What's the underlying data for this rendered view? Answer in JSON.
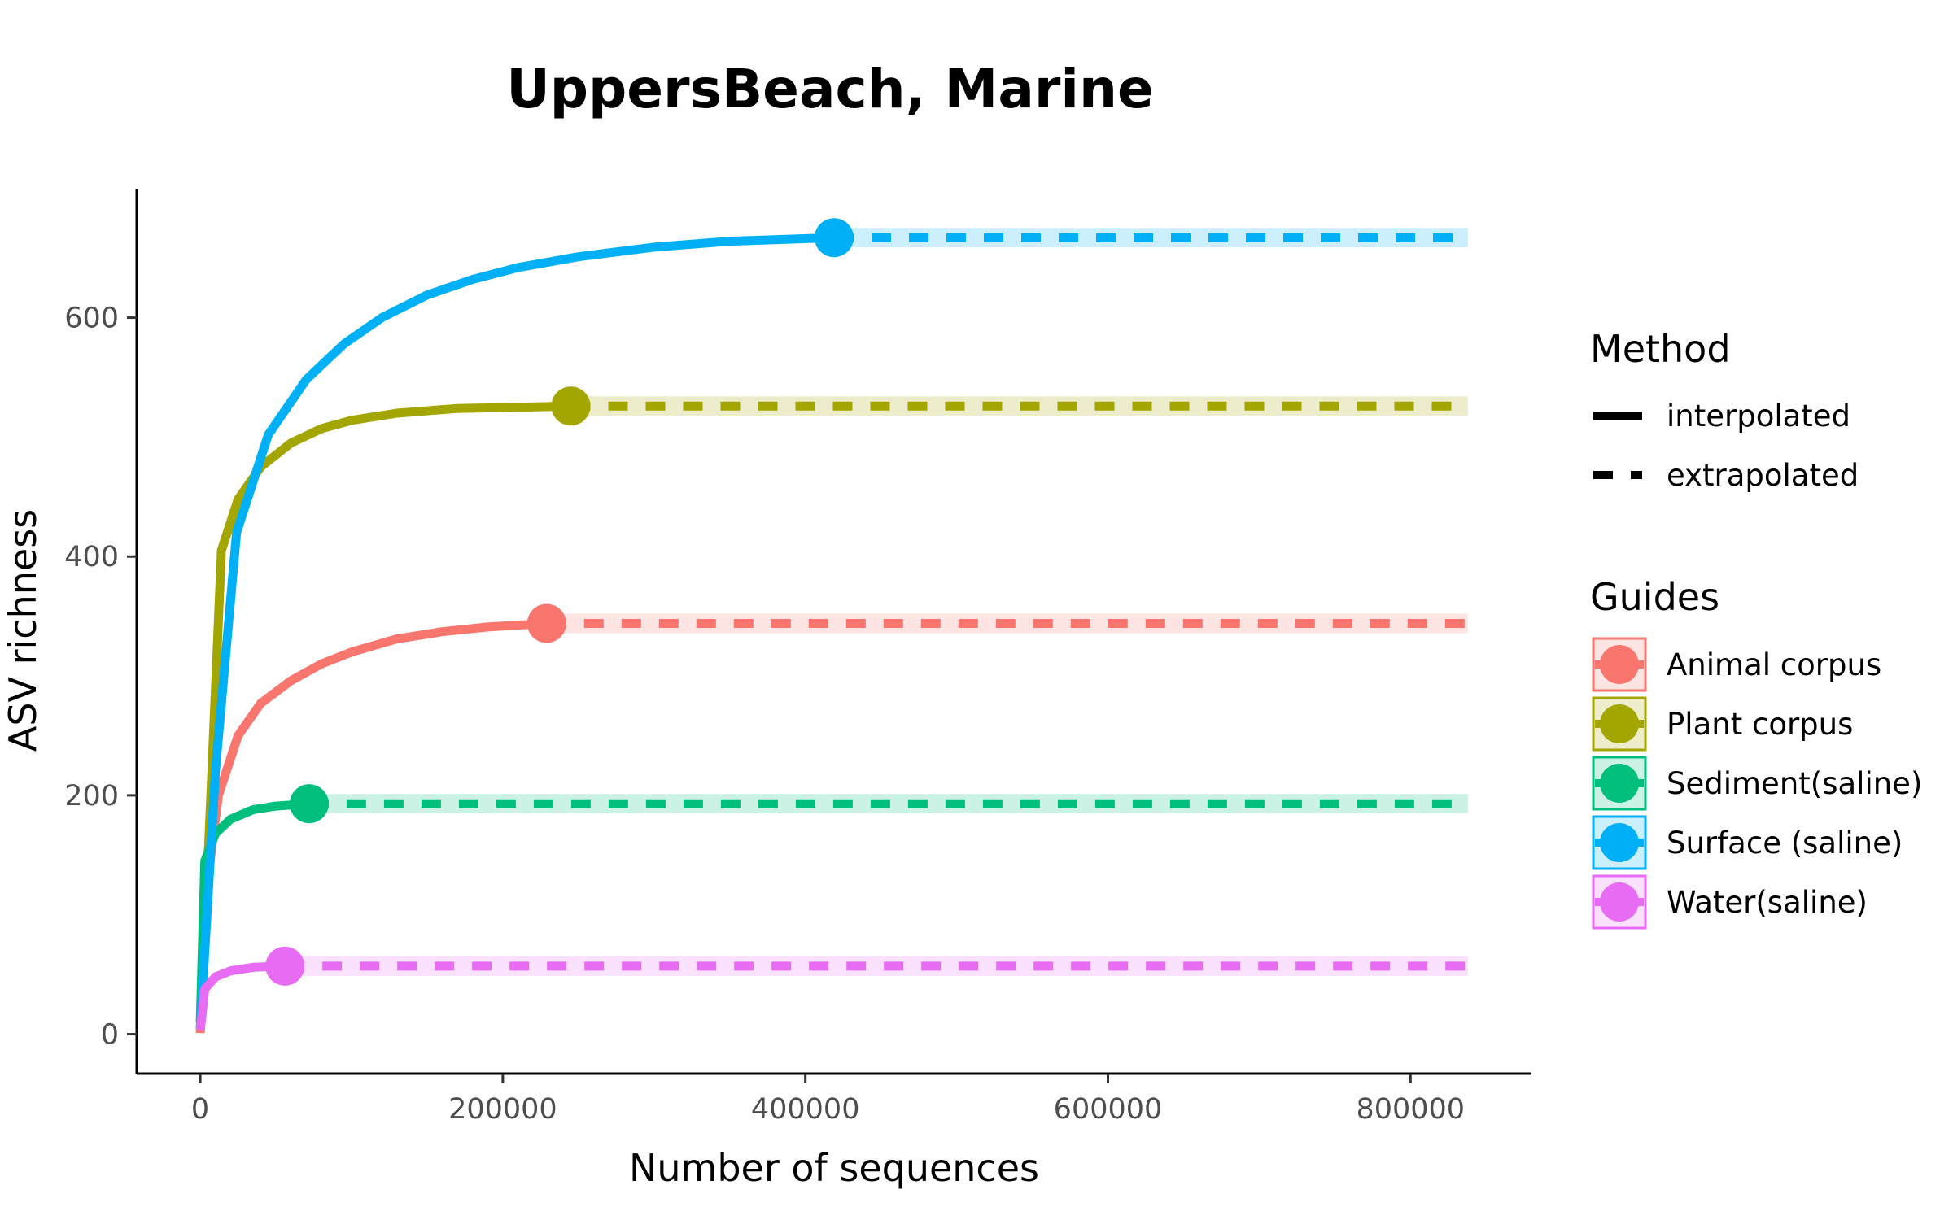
{
  "chart_data": {
    "type": "line",
    "title": "UppersBeach, Marine",
    "xlabel": "Number of sequences",
    "ylabel": "ASV richness",
    "xlim": [
      -42000,
      880000
    ],
    "ylim": [
      -33,
      708
    ],
    "xticks": [
      0,
      200000,
      400000,
      600000,
      800000
    ],
    "xtick_labels": [
      "0",
      "200000",
      "400000",
      "600000",
      "800000"
    ],
    "yticks": [
      0,
      200,
      400,
      600
    ],
    "ytick_labels": [
      "0",
      "200",
      "400",
      "600"
    ],
    "grid": false,
    "legend_position": "right",
    "method_legend": {
      "title": "Method",
      "items": [
        {
          "label": "interpolated",
          "style": "solid"
        },
        {
          "label": "extrapolated",
          "style": "dashed"
        }
      ]
    },
    "series_legend_title": "Guides",
    "x_max": 838000,
    "series": [
      {
        "name": "Animal corpus",
        "color": "#F8766D",
        "observed": [
          229000,
          344
        ],
        "interpolated": [
          [
            0,
            1
          ],
          [
            5000,
            130
          ],
          [
            12000,
            200
          ],
          [
            25000,
            250
          ],
          [
            40000,
            277
          ],
          [
            60000,
            296
          ],
          [
            80000,
            310
          ],
          [
            100000,
            320
          ],
          [
            130000,
            331
          ],
          [
            160000,
            337
          ],
          [
            190000,
            341
          ],
          [
            229000,
            344
          ]
        ],
        "extrapolated": [
          [
            229000,
            344
          ],
          [
            838000,
            344
          ]
        ]
      },
      {
        "name": "Plant corpus",
        "color": "#A3A500",
        "observed": [
          245000,
          526
        ],
        "interpolated": [
          [
            0,
            3
          ],
          [
            7000,
            200
          ],
          [
            14000,
            405
          ],
          [
            25000,
            448
          ],
          [
            40000,
            475
          ],
          [
            60000,
            495
          ],
          [
            80000,
            507
          ],
          [
            100000,
            514
          ],
          [
            130000,
            520
          ],
          [
            170000,
            524
          ],
          [
            210000,
            525
          ],
          [
            245000,
            526
          ]
        ],
        "extrapolated": [
          [
            245000,
            526
          ],
          [
            838000,
            526
          ]
        ]
      },
      {
        "name": "Sediment(saline)",
        "color": "#00BF7D",
        "observed": [
          72000,
          193
        ],
        "interpolated": [
          [
            0,
            10
          ],
          [
            3000,
            145
          ],
          [
            10000,
            168
          ],
          [
            20000,
            180
          ],
          [
            35000,
            188
          ],
          [
            50000,
            191
          ],
          [
            72000,
            193
          ]
        ],
        "extrapolated": [
          [
            72000,
            193
          ],
          [
            838000,
            193
          ]
        ]
      },
      {
        "name": "Surface (saline)",
        "color": "#00B0F6",
        "observed": [
          419000,
          667
        ],
        "interpolated": [
          [
            0,
            5
          ],
          [
            10000,
            220
          ],
          [
            24000,
            420
          ],
          [
            45000,
            502
          ],
          [
            70000,
            548
          ],
          [
            95000,
            578
          ],
          [
            120000,
            600
          ],
          [
            150000,
            619
          ],
          [
            180000,
            632
          ],
          [
            210000,
            642
          ],
          [
            250000,
            651
          ],
          [
            300000,
            659
          ],
          [
            350000,
            664
          ],
          [
            419000,
            667
          ]
        ],
        "extrapolated": [
          [
            419000,
            667
          ],
          [
            838000,
            667
          ]
        ]
      },
      {
        "name": "Water(saline)",
        "color": "#E76BF3",
        "observed": [
          56000,
          57
        ],
        "interpolated": [
          [
            0,
            3
          ],
          [
            3000,
            38
          ],
          [
            10000,
            48
          ],
          [
            20000,
            53
          ],
          [
            35000,
            56
          ],
          [
            56000,
            57
          ]
        ],
        "extrapolated": [
          [
            56000,
            57
          ],
          [
            838000,
            57
          ]
        ]
      }
    ]
  }
}
